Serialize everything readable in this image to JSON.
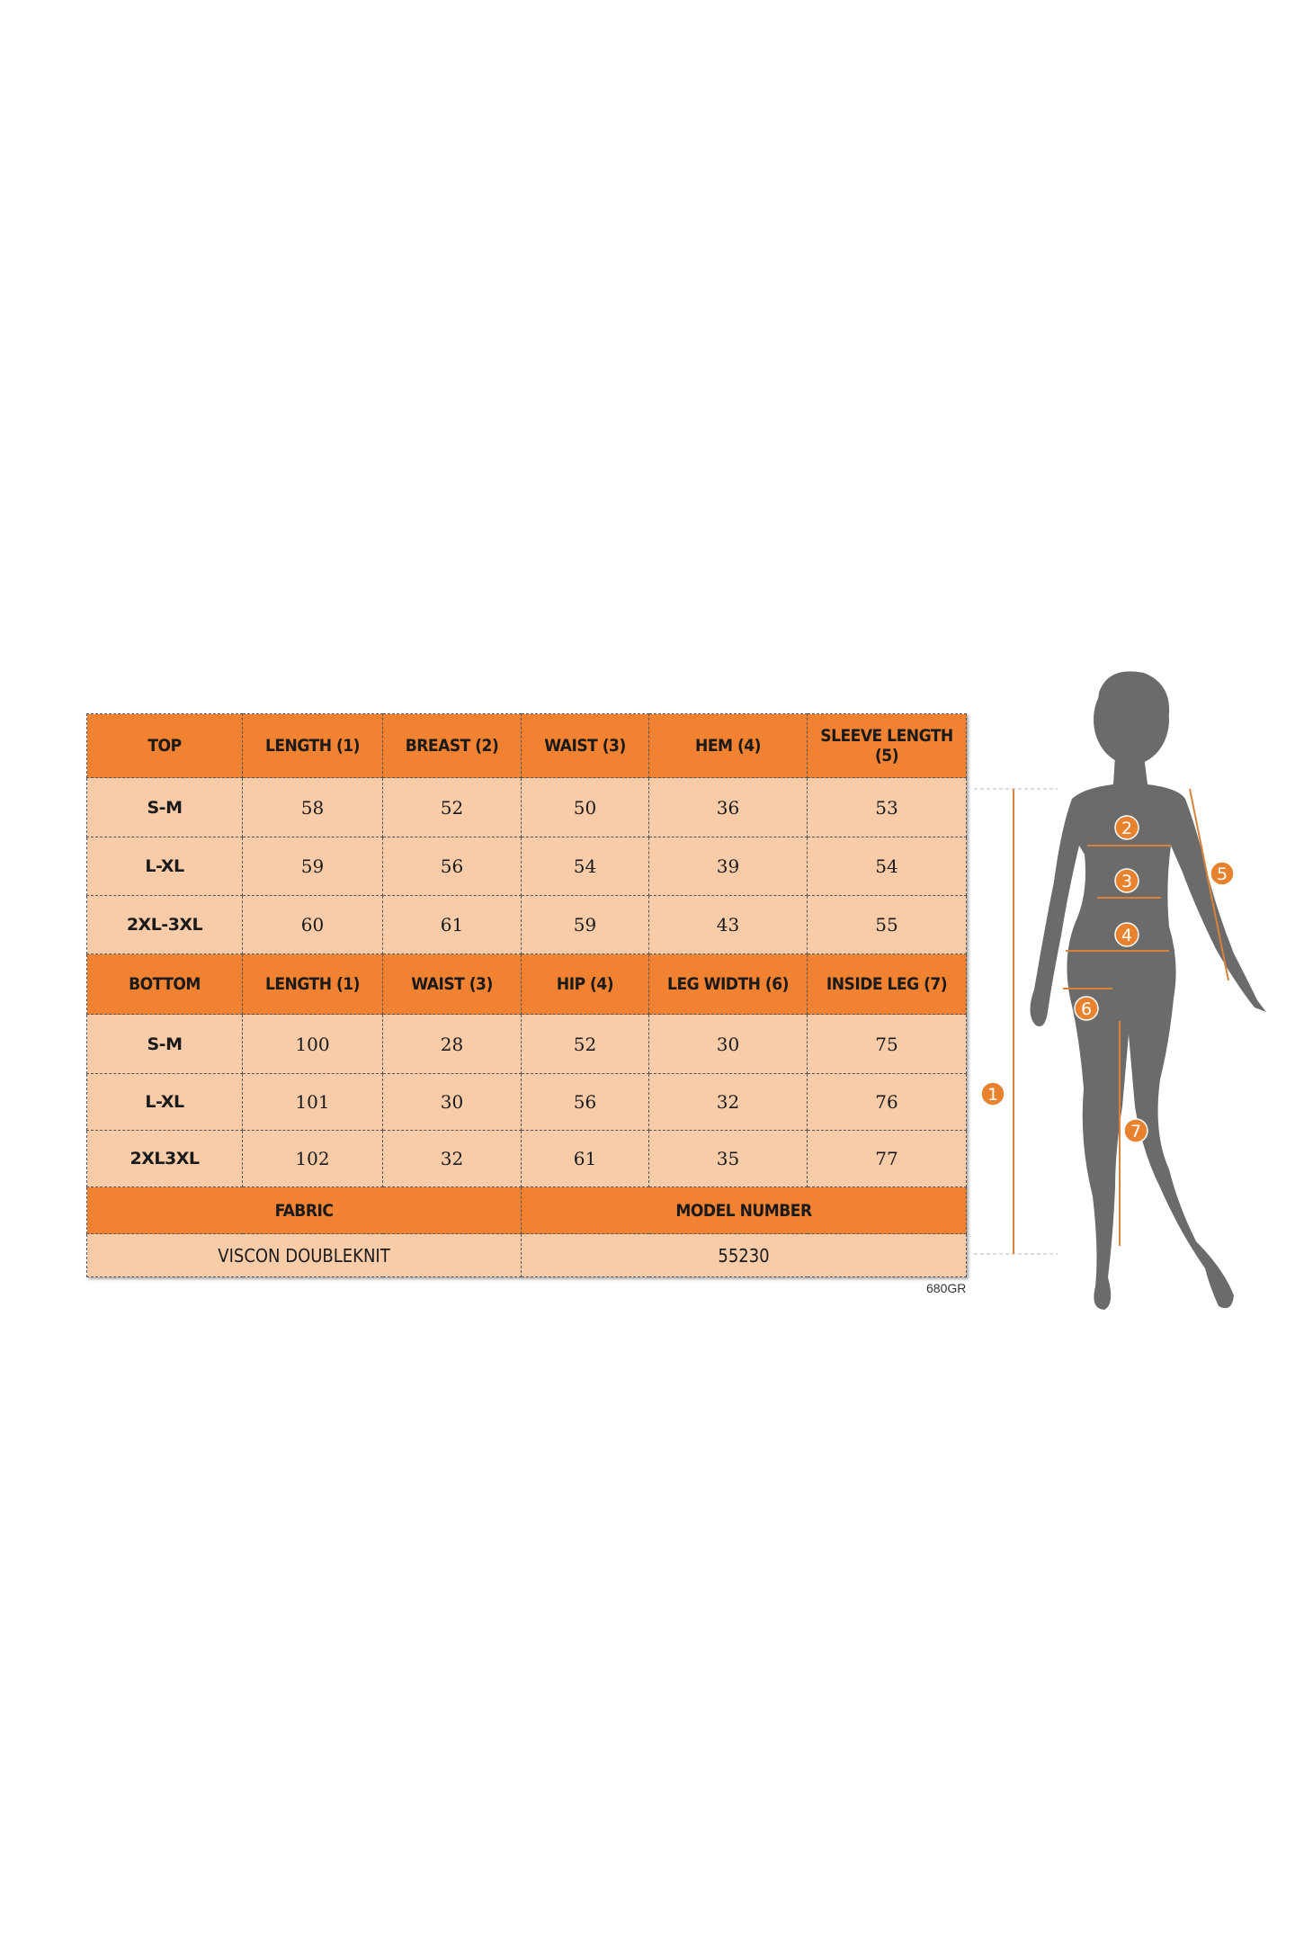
{
  "top_header": [
    "TOP",
    "LENGTH (1)",
    "BREAST (2)",
    "WAIST (3)",
    "HEM (4)",
    "SLEEVE LENGTH (5)"
  ],
  "top_rows": [
    [
      "S-M",
      "58",
      "52",
      "50",
      "36",
      "53"
    ],
    [
      "L-XL",
      "59",
      "56",
      "54",
      "39",
      "54"
    ],
    [
      "2XL-3XL",
      "60",
      "61",
      "59",
      "43",
      "55"
    ]
  ],
  "bottom_header": [
    "BOTTOM",
    "LENGTH (1)",
    "WAIST (3)",
    "HIP (4)",
    "LEG WIDTH (6)",
    "INSIDE LEG (7)"
  ],
  "bottom_rows": [
    [
      "S-M",
      "100",
      "28",
      "52",
      "30",
      "75"
    ],
    [
      "L-XL",
      "101",
      "30",
      "56",
      "32",
      "76"
    ],
    [
      "2XL3XL",
      "102",
      "32",
      "61",
      "35",
      "77"
    ]
  ],
  "footer": {
    "fabric_label": "FABRIC",
    "model_label": "MODEL NUMBER",
    "fabric_value": "VISCON DOUBLEKNIT",
    "model_value": "55230"
  },
  "code": "680GR",
  "figure": {
    "markers": [
      "1",
      "2",
      "3",
      "4",
      "5",
      "6",
      "7"
    ]
  },
  "colors": {
    "header": "#f08232",
    "cell": "#f9cca9",
    "silhouette": "#6b6b6b",
    "arrow": "#d9823c"
  }
}
